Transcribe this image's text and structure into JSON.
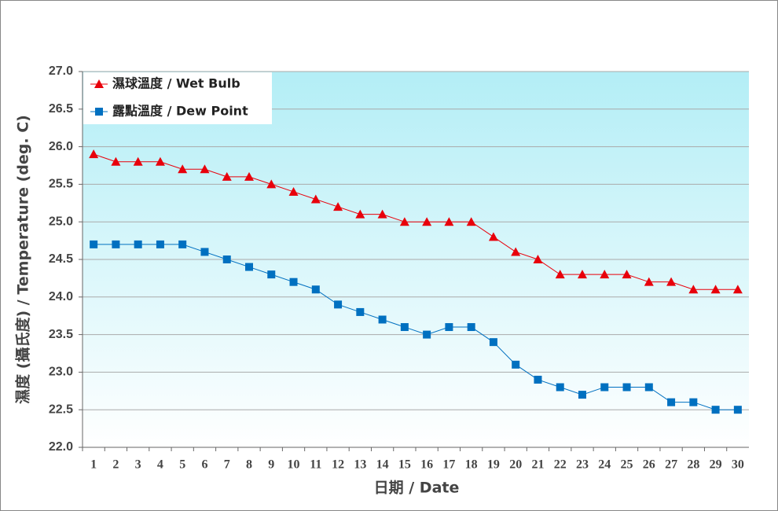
{
  "chart_data": {
    "type": "line",
    "xlabel": "日期 / Date",
    "ylabel": "濕度 (攝氏度) / Temperature (deg. C)",
    "categories": [
      "1",
      "2",
      "3",
      "4",
      "5",
      "6",
      "7",
      "8",
      "9",
      "10",
      "11",
      "12",
      "13",
      "14",
      "15",
      "16",
      "17",
      "18",
      "19",
      "20",
      "21",
      "22",
      "23",
      "24",
      "25",
      "26",
      "27",
      "28",
      "29",
      "30"
    ],
    "series": [
      {
        "name": "濕球溫度 / Wet Bulb",
        "color": "#e8000b",
        "marker": "triangle",
        "values": [
          25.9,
          25.8,
          25.8,
          25.8,
          25.7,
          25.7,
          25.6,
          25.6,
          25.5,
          25.4,
          25.3,
          25.2,
          25.1,
          25.1,
          25.0,
          25.0,
          25.0,
          25.0,
          24.8,
          24.6,
          24.5,
          24.3,
          24.3,
          24.3,
          24.3,
          24.2,
          24.2,
          24.1,
          24.1,
          24.1
        ]
      },
      {
        "name": "露點溫度 / Dew Point",
        "color": "#0070c0",
        "marker": "square",
        "values": [
          24.7,
          24.7,
          24.7,
          24.7,
          24.7,
          24.6,
          24.5,
          24.4,
          24.3,
          24.2,
          24.1,
          23.9,
          23.8,
          23.7,
          23.6,
          23.5,
          23.6,
          23.6,
          23.4,
          23.1,
          22.9,
          22.8,
          22.7,
          22.8,
          22.8,
          22.8,
          22.6,
          22.6,
          22.5,
          22.5
        ]
      }
    ],
    "ylim": [
      22.0,
      27.0
    ],
    "yticks": [
      {
        "value": 22.0,
        "label": "22.0"
      },
      {
        "value": 22.5,
        "label": "22.5"
      },
      {
        "value": 23.0,
        "label": "23.0"
      },
      {
        "value": 23.5,
        "label": "23.5"
      },
      {
        "value": 24.0,
        "label": "24.0"
      },
      {
        "value": 24.5,
        "label": "24.5"
      },
      {
        "value": 25.0,
        "label": "25.0"
      },
      {
        "value": 25.5,
        "label": "25.5"
      },
      {
        "value": 26.0,
        "label": "26.0"
      },
      {
        "value": 26.5,
        "label": "26.5"
      },
      {
        "value": 27.0,
        "label": "27.0"
      }
    ],
    "grid": true,
    "legend": "top-left"
  }
}
